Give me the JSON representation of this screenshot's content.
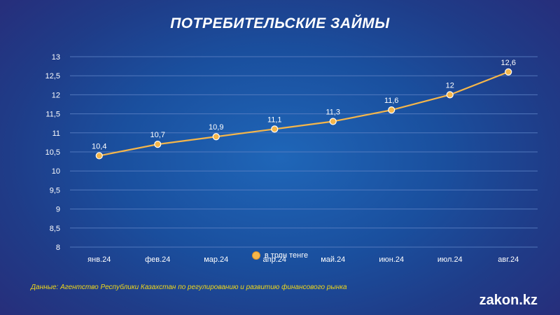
{
  "chart_data": {
    "type": "line",
    "title": "ПОТРЕБИТЕЛЬСКИЕ ЗАЙМЫ",
    "categories": [
      "янв.24",
      "фев.24",
      "мар.24",
      "апр.24",
      "май.24",
      "июн.24",
      "июл.24",
      "авг.24"
    ],
    "series": [
      {
        "name": "в трлн тенге",
        "values": [
          10.4,
          10.7,
          10.9,
          11.1,
          11.3,
          11.6,
          12,
          12.6
        ],
        "labels": [
          "10,4",
          "10,7",
          "10,9",
          "11,1",
          "11,3",
          "11,6",
          "12",
          "12,6"
        ]
      }
    ],
    "ylim": [
      8,
      13
    ],
    "yticks": [
      8,
      8.5,
      9,
      9.5,
      10,
      10.5,
      11,
      11.5,
      12,
      12.5,
      13
    ],
    "ytick_labels": [
      "8",
      "8,5",
      "9",
      "9,5",
      "10",
      "10,5",
      "11",
      "11,5",
      "12",
      "12,5",
      "13"
    ],
    "grid": true,
    "legend": "bottom",
    "colors": {
      "line": "#f5b64a",
      "marker": "#f5b64a",
      "grid": "#5b80c4",
      "text": "#ffffff"
    }
  },
  "source_text": "Данные: Агентство Республики Казахстан по регулированию и развитию финансового рынка",
  "logo_text": "zakon.kz"
}
